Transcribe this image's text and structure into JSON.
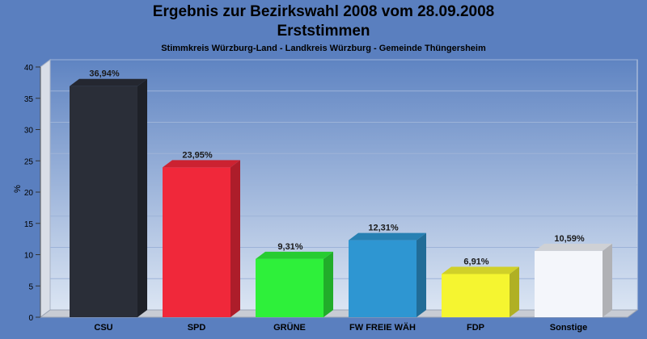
{
  "colors": {
    "background": "#5a7fbf",
    "plot_top": "#5f84c2",
    "plot_bottom": "#dbe5f3"
  },
  "chart_data": {
    "type": "bar",
    "title": "Ergebnis zur Bezirkswahl 2008 vom 28.09.2008",
    "title2": "Erststimmen",
    "subtitle": "Stimmkreis Würzburg-Land - Landkreis Würzburg - Gemeinde Thüngersheim",
    "ylabel": "%",
    "xlabel": "",
    "ylim": [
      0,
      40
    ],
    "yticks": [
      0,
      5,
      10,
      15,
      20,
      25,
      30,
      35,
      40
    ],
    "grid": true,
    "legend": "none",
    "categories": [
      "CSU",
      "SPD",
      "GRÜNE",
      "FW FREIE WÄH",
      "FDP",
      "Sonstige"
    ],
    "values": [
      36.94,
      23.95,
      9.31,
      12.31,
      6.91,
      10.59
    ],
    "value_labels": [
      "36,94%",
      "23,95%",
      "9,31%",
      "12,31%",
      "6,91%",
      "10,59%"
    ],
    "bar_colors": [
      "#2a2e38",
      "#f0283a",
      "#2ef03a",
      "#2e96d2",
      "#f5f530",
      "#f4f6fb"
    ]
  }
}
